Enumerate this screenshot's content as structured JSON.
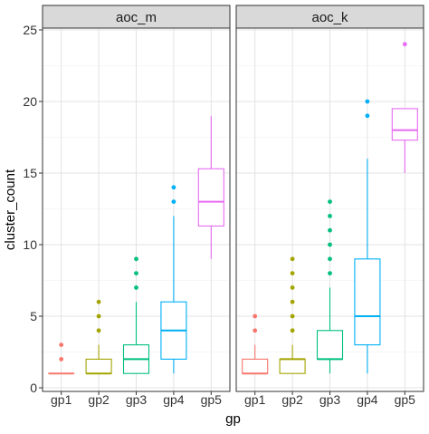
{
  "chart_data": {
    "type": "boxplot",
    "xlabel": "gp",
    "ylabel": "cluster_count",
    "ylim": [
      0,
      25
    ],
    "yticks": [
      0,
      5,
      10,
      15,
      20,
      25
    ],
    "grid": true,
    "legend": "none",
    "categories": [
      "gp1",
      "gp2",
      "gp3",
      "gp4",
      "gp5"
    ],
    "group_colors": [
      "#F8766D",
      "#A3A500",
      "#00BF7D",
      "#00B0F6",
      "#E76BF3"
    ],
    "panels": [
      {
        "title": "aoc_m",
        "boxes": [
          {
            "group": "gp1",
            "min": 1,
            "q1": 1,
            "median": 1,
            "q3": 1,
            "max": 1,
            "outliers": [
              2,
              3
            ]
          },
          {
            "group": "gp2",
            "min": 1,
            "q1": 1,
            "median": 1,
            "q3": 2,
            "max": 3,
            "outliers": [
              4,
              5,
              6
            ]
          },
          {
            "group": "gp3",
            "min": 1,
            "q1": 1,
            "median": 2,
            "q3": 3,
            "max": 6,
            "outliers": [
              7,
              8,
              9
            ]
          },
          {
            "group": "gp4",
            "min": 1,
            "q1": 2,
            "median": 4,
            "q3": 6,
            "max": 12,
            "outliers": [
              13,
              14
            ]
          },
          {
            "group": "gp5",
            "min": 9,
            "q1": 11.3,
            "median": 13,
            "q3": 15.3,
            "max": 19,
            "outliers": []
          }
        ]
      },
      {
        "title": "aoc_k",
        "boxes": [
          {
            "group": "gp1",
            "min": 1,
            "q1": 1,
            "median": 1,
            "q3": 2,
            "max": 3,
            "outliers": [
              4,
              5
            ]
          },
          {
            "group": "gp2",
            "min": 1,
            "q1": 1,
            "median": 2,
            "q3": 2,
            "max": 3,
            "outliers": [
              4,
              5,
              6,
              7,
              8,
              9
            ]
          },
          {
            "group": "gp3",
            "min": 1,
            "q1": 2,
            "median": 2,
            "q3": 4,
            "max": 7,
            "outliers": [
              8,
              9,
              10,
              11,
              12,
              13
            ]
          },
          {
            "group": "gp4",
            "min": 1,
            "q1": 3,
            "median": 5,
            "q3": 9,
            "max": 16,
            "outliers": [
              19,
              20
            ]
          },
          {
            "group": "gp5",
            "min": 15,
            "q1": 17.3,
            "median": 18,
            "q3": 19.5,
            "max": 19.5,
            "outliers": [
              24
            ]
          }
        ]
      }
    ]
  }
}
